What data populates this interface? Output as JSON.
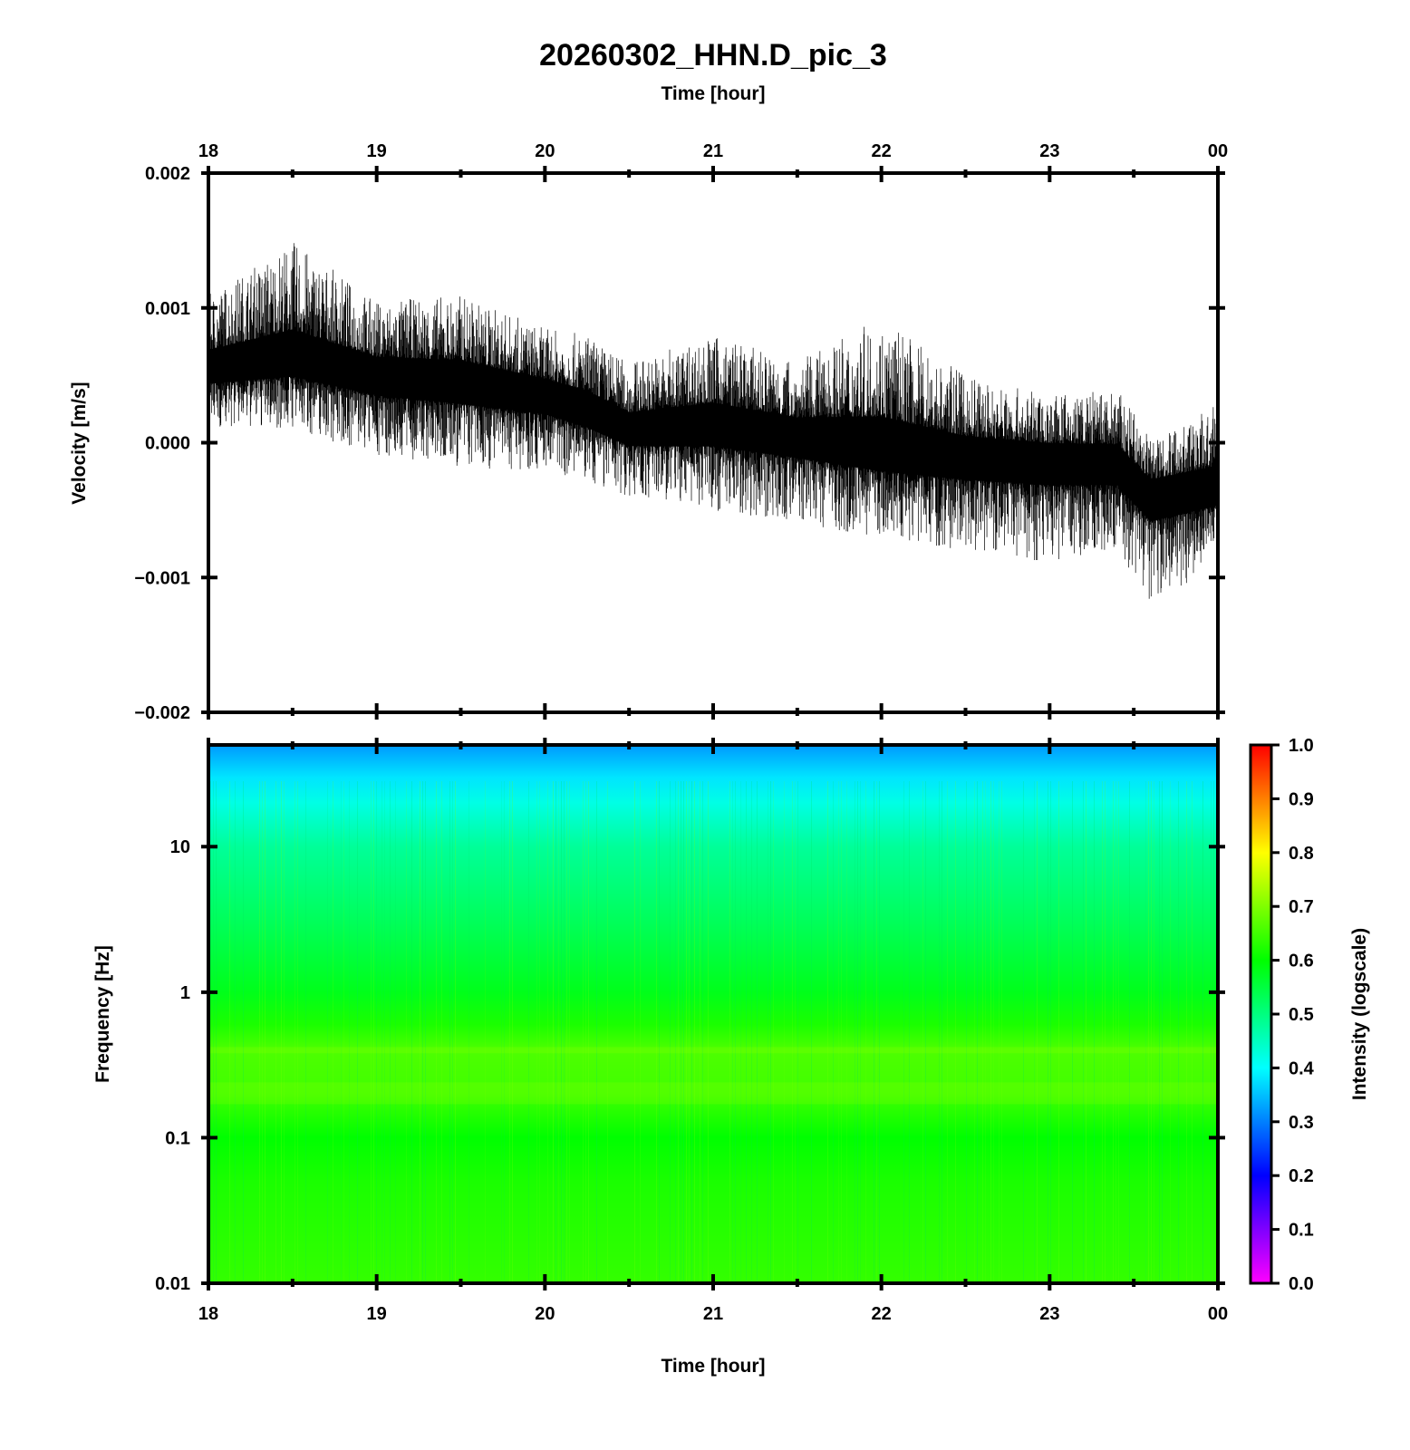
{
  "chart_data": [
    {
      "type": "line",
      "title": "20260302_HHN.D_pic_3",
      "xlabel": "Time [hour]",
      "ylabel": "Velocity [m/s]",
      "x_ticks": [
        "18",
        "19",
        "20",
        "21",
        "22",
        "23",
        "00"
      ],
      "y_ticks": [
        "0.002",
        "0.001",
        "0.000",
        "−0.001",
        "−0.002"
      ],
      "xlim_hours": [
        18,
        24
      ],
      "ylim": [
        -0.002,
        0.002
      ],
      "grid": false,
      "series": [
        {
          "x": [
            18.0,
            18.5,
            19.0,
            19.5,
            20.0,
            20.25,
            20.5,
            21.0,
            21.5,
            22.0,
            22.5,
            23.0,
            23.4,
            23.6,
            24.0
          ],
          "mean": [
            0.00055,
            0.00062,
            0.0005,
            0.00045,
            0.00035,
            0.00025,
            0.0001,
            0.00013,
            5e-05,
            -5e-05,
            -0.0001,
            -0.00012,
            -0.00015,
            -0.00038,
            -0.00032
          ],
          "envelope_max": [
            0.0011,
            0.0015,
            0.00105,
            0.0011,
            0.00085,
            0.0008,
            0.0006,
            0.0008,
            0.0006,
            0.00093,
            0.0005,
            0.00035,
            0.0004,
            5e-05,
            0.00028
          ],
          "envelope_min": [
            0.0001,
            0.0001,
            -0.0001,
            -0.0002,
            -0.0002,
            -0.0003,
            -0.0004,
            -0.0005,
            -0.0006,
            -0.0007,
            -0.0008,
            -0.0009,
            -0.0008,
            -0.0012,
            -0.0009
          ]
        }
      ]
    },
    {
      "type": "heatmap",
      "xlabel": "Time [hour]",
      "ylabel": "Frequency [Hz]",
      "x_ticks": [
        "18",
        "19",
        "20",
        "21",
        "22",
        "23",
        "00"
      ],
      "y_ticks": [
        "10",
        "1",
        "0.1",
        "0.01"
      ],
      "xlim_hours": [
        18,
        24
      ],
      "ylim": [
        0.01,
        50
      ],
      "y_scale": "log",
      "colorbar": {
        "label": "Intensity (logscale)",
        "range": [
          0.0,
          1.0
        ],
        "ticks": [
          "1.0",
          "0.9",
          "0.8",
          "0.7",
          "0.6",
          "0.5",
          "0.4",
          "0.3",
          "0.2",
          "0.1",
          "0.0"
        ],
        "colors": [
          "#ff00ff",
          "#0000ff",
          "#00ffff",
          "#00ff00",
          "#ffff00",
          "#ff0000"
        ]
      },
      "intensity_profile": {
        "frequency_hz": [
          50,
          30,
          20,
          10,
          3,
          1,
          0.6,
          0.4,
          0.2,
          0.1,
          0.05,
          0.01
        ],
        "intensity": [
          0.32,
          0.38,
          0.42,
          0.48,
          0.53,
          0.58,
          0.62,
          0.66,
          0.65,
          0.6,
          0.62,
          0.64
        ]
      }
    }
  ]
}
